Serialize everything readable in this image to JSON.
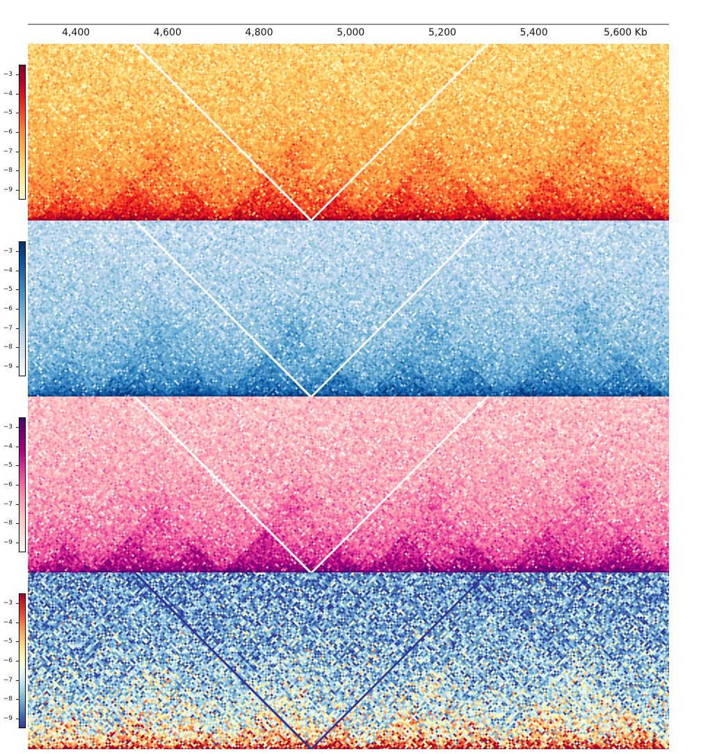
{
  "chart_data": {
    "type": "heatmap",
    "description_free": true,
    "x_axis": {
      "range_kb": [
        4295,
        5695
      ],
      "ticks": [
        4400,
        4600,
        4800,
        5000,
        5200,
        5400,
        5600
      ],
      "tick_labels": [
        "4,400",
        "4,600",
        "4,800",
        "5,000",
        "5,200",
        "5,400",
        "5,600 Kb"
      ],
      "position": "top"
    },
    "colorbar": {
      "ticks": [
        -3,
        -4,
        -5,
        -6,
        -7,
        -8,
        -9
      ],
      "tick_labels": [
        "−3",
        "−4",
        "−5",
        "−6",
        "−7",
        "−8",
        "−9"
      ],
      "range": [
        -9.5,
        -2.5
      ]
    },
    "tads_kb": [
      {
        "start": 4310,
        "end": 4440
      },
      {
        "start": 4440,
        "end": 4600
      },
      {
        "start": 4600,
        "end": 4720
      },
      {
        "start": 4720,
        "end": 4910
      },
      {
        "start": 4910,
        "end": 5030
      },
      {
        "start": 5030,
        "end": 5200
      },
      {
        "start": 5200,
        "end": 5330
      },
      {
        "start": 5330,
        "end": 5520
      },
      {
        "start": 5520,
        "end": 5690
      }
    ],
    "large_domains_kb": [
      {
        "start": 4440,
        "end": 4720
      },
      {
        "start": 4720,
        "end": 5030
      },
      {
        "start": 5030,
        "end": 5330
      },
      {
        "start": 5330,
        "end": 5690
      }
    ],
    "missing_bin_kb": 4915,
    "panels": [
      {
        "colormap": "YlOrRd",
        "colors": [
          "#ffffcc",
          "#ffeda0",
          "#fed976",
          "#feb24c",
          "#fd8d3c",
          "#fc4e2a",
          "#e31a1c",
          "#bd0026",
          "#800026"
        ],
        "gap_color": "#ffffff"
      },
      {
        "colormap": "Blues",
        "colors": [
          "#f7fbff",
          "#deebf7",
          "#c6dbef",
          "#9ecae1",
          "#6baed6",
          "#4292c6",
          "#2171b5",
          "#08519c",
          "#08306b"
        ],
        "gap_color": "#ffffff"
      },
      {
        "colormap": "RdPu",
        "colors": [
          "#fff7f3",
          "#fde0dd",
          "#fcc5c0",
          "#fa9fb5",
          "#f768a1",
          "#dd3497",
          "#ae017e",
          "#7a0177",
          "#49006a"
        ],
        "gap_color": "#ffffff"
      },
      {
        "colormap": "RdYlBu_r",
        "colors": [
          "#313695",
          "#4575b4",
          "#74add1",
          "#abd9e9",
          "#e0f3f8",
          "#ffffbf",
          "#fee090",
          "#fdae61",
          "#f46d43",
          "#d73027",
          "#a50026"
        ],
        "gap_color": "#313695"
      }
    ]
  }
}
